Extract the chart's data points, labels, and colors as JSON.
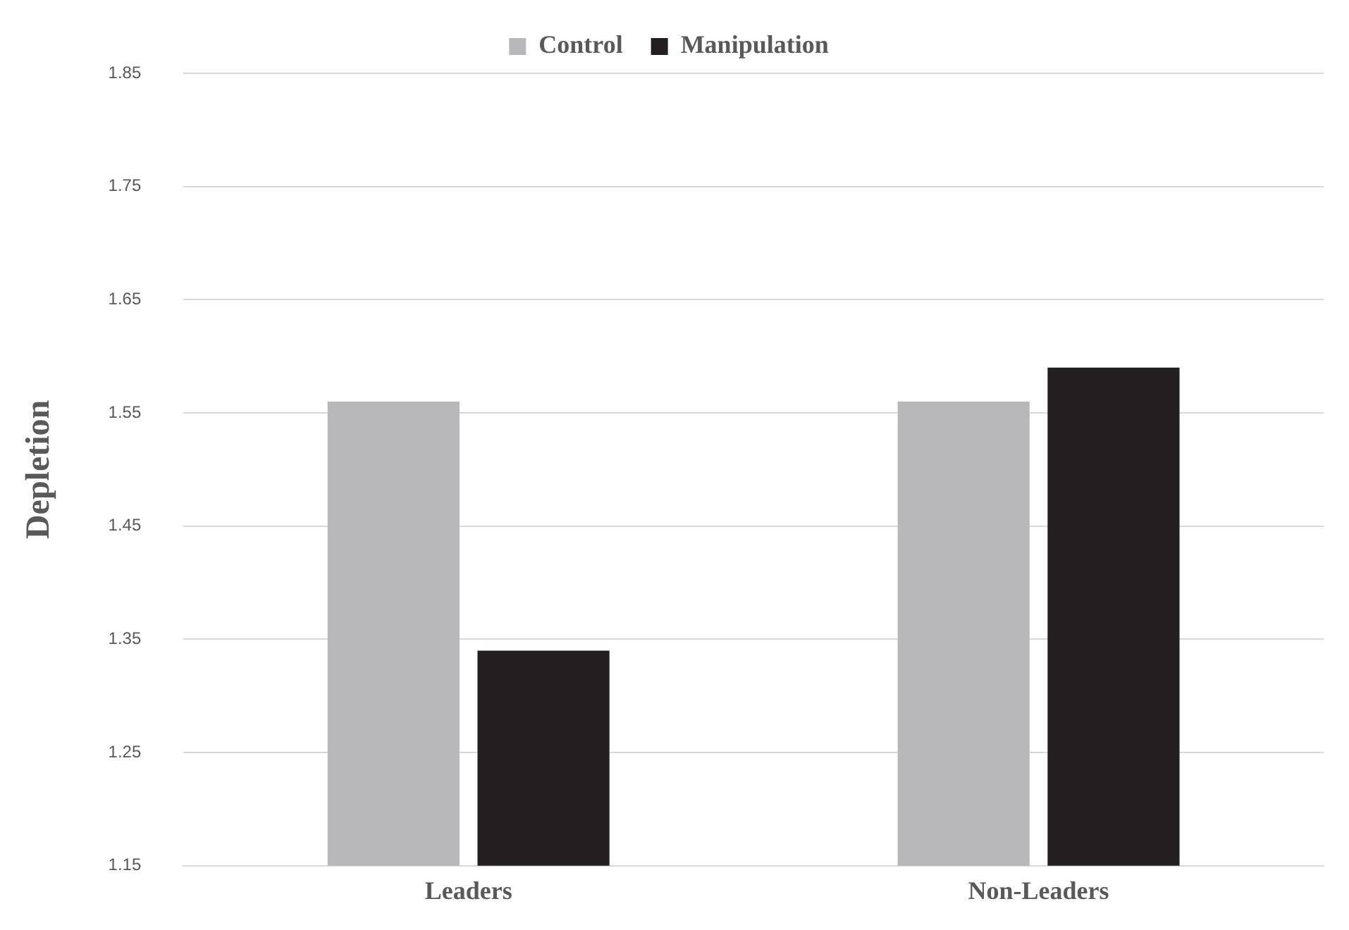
{
  "chart_data": {
    "type": "bar",
    "ylabel": "Depletion",
    "categories": [
      "Leaders",
      "Non-Leaders"
    ],
    "series": [
      {
        "name": "Control",
        "color": "#b8b8bb",
        "values": [
          1.56,
          1.56
        ]
      },
      {
        "name": "Manipulation",
        "color": "#231f20",
        "values": [
          1.34,
          1.59
        ]
      }
    ],
    "ylim": [
      1.15,
      1.85
    ],
    "yticks": [
      1.15,
      1.25,
      1.35,
      1.45,
      1.55,
      1.65,
      1.75,
      1.85
    ],
    "grid": "y",
    "legend": "top"
  }
}
